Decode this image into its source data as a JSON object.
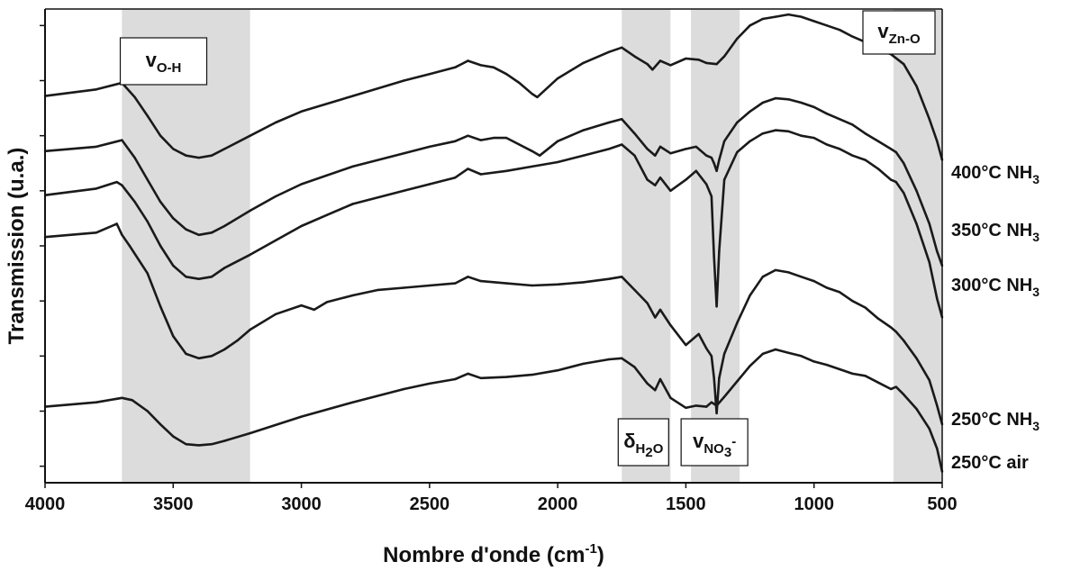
{
  "chart_data": {
    "type": "line",
    "xlabel": "Nombre d'onde (cm",
    "xlabel_sup": "-1",
    "xlabel_end": ")",
    "ylabel": "Transmission (u.a.)",
    "xlim": [
      4000,
      500
    ],
    "x_reversed": true,
    "x_ticks": [
      4000,
      3500,
      3000,
      2500,
      2000,
      1500,
      1000,
      500
    ],
    "y_ticks_labeled": false,
    "grid": false,
    "shaded_regions": [
      {
        "x": [
          3700,
          3200
        ],
        "label": "v",
        "sub": "O-H"
      },
      {
        "x": [
          1750,
          1560
        ],
        "label": "δ",
        "sub": "H",
        "sub2": "2",
        "sub3": "O"
      },
      {
        "x": [
          1480,
          1290
        ],
        "label": "v",
        "sub": "NO",
        "sub2": "3",
        "sup": "-"
      },
      {
        "x": [
          690,
          500
        ],
        "label": "v",
        "sub": "Zn-O"
      }
    ],
    "series": [
      {
        "name": "250°C air",
        "label_main": "250°C air",
        "label_sub": "",
        "x": [
          4000,
          3800,
          3700,
          3660,
          3600,
          3550,
          3500,
          3450,
          3400,
          3350,
          3300,
          3200,
          3000,
          2800,
          2600,
          2500,
          2400,
          2350,
          2300,
          2200,
          2100,
          2000,
          1900,
          1800,
          1750,
          1700,
          1650,
          1620,
          1600,
          1560,
          1500,
          1460,
          1420,
          1400,
          1380,
          1350,
          1300,
          1250,
          1200,
          1150,
          1100,
          1050,
          1000,
          950,
          900,
          850,
          800,
          750,
          700,
          680,
          650,
          600,
          550,
          520,
          500
        ],
        "y": [
          0.54,
          0.58,
          0.62,
          0.6,
          0.5,
          0.38,
          0.27,
          0.2,
          0.19,
          0.2,
          0.23,
          0.3,
          0.45,
          0.58,
          0.7,
          0.75,
          0.79,
          0.84,
          0.8,
          0.81,
          0.83,
          0.87,
          0.93,
          0.97,
          0.98,
          0.9,
          0.75,
          0.69,
          0.79,
          0.62,
          0.53,
          0.55,
          0.54,
          0.58,
          0.55,
          0.63,
          0.77,
          0.91,
          1.02,
          1.06,
          1.03,
          1.0,
          0.95,
          0.92,
          0.88,
          0.84,
          0.82,
          0.76,
          0.7,
          0.72,
          0.65,
          0.52,
          0.34,
          0.16,
          -0.05
        ]
      },
      {
        "name": "250°C NH3",
        "label_main": "250°C NH",
        "label_sub": "3",
        "x": [
          4000,
          3800,
          3720,
          3700,
          3670,
          3600,
          3550,
          3500,
          3450,
          3400,
          3350,
          3300,
          3250,
          3200,
          3100,
          3000,
          2950,
          2900,
          2800,
          2700,
          2600,
          2500,
          2400,
          2350,
          2300,
          2200,
          2100,
          2000,
          1900,
          1800,
          1750,
          1700,
          1650,
          1620,
          1600,
          1560,
          1500,
          1450,
          1420,
          1400,
          1390,
          1380,
          1370,
          1350,
          1300,
          1250,
          1200,
          1150,
          1100,
          1050,
          1000,
          950,
          900,
          850,
          800,
          750,
          700,
          680,
          650,
          600,
          550,
          520,
          500
        ],
        "y": [
          2.08,
          2.12,
          2.2,
          2.1,
          2.0,
          1.75,
          1.45,
          1.18,
          1.02,
          0.98,
          1.0,
          1.06,
          1.14,
          1.24,
          1.38,
          1.46,
          1.42,
          1.49,
          1.55,
          1.6,
          1.62,
          1.64,
          1.66,
          1.72,
          1.68,
          1.66,
          1.64,
          1.65,
          1.67,
          1.7,
          1.72,
          1.6,
          1.48,
          1.35,
          1.42,
          1.28,
          1.1,
          1.2,
          1.07,
          1.0,
          0.8,
          0.48,
          0.8,
          1.02,
          1.3,
          1.55,
          1.72,
          1.78,
          1.76,
          1.72,
          1.68,
          1.62,
          1.58,
          1.5,
          1.44,
          1.34,
          1.26,
          1.22,
          1.14,
          0.98,
          0.78,
          0.55,
          0.38
        ]
      },
      {
        "name": "300°C NH3",
        "label_main": "300°C NH",
        "label_sub": "3",
        "x": [
          4000,
          3800,
          3720,
          3700,
          3650,
          3600,
          3550,
          3500,
          3450,
          3400,
          3350,
          3300,
          3200,
          3100,
          3000,
          2900,
          2800,
          2600,
          2500,
          2400,
          2350,
          2300,
          2200,
          2100,
          2000,
          1900,
          1800,
          1750,
          1700,
          1650,
          1620,
          1600,
          1560,
          1500,
          1460,
          1420,
          1400,
          1390,
          1380,
          1370,
          1350,
          1300,
          1250,
          1200,
          1150,
          1100,
          1050,
          1000,
          950,
          900,
          850,
          800,
          750,
          700,
          680,
          650,
          600,
          550,
          520,
          500
        ],
        "y": [
          2.46,
          2.52,
          2.58,
          2.55,
          2.4,
          2.22,
          2.0,
          1.82,
          1.72,
          1.7,
          1.72,
          1.8,
          1.92,
          2.05,
          2.18,
          2.28,
          2.38,
          2.5,
          2.56,
          2.62,
          2.7,
          2.65,
          2.68,
          2.72,
          2.76,
          2.82,
          2.88,
          2.92,
          2.82,
          2.6,
          2.55,
          2.62,
          2.5,
          2.6,
          2.68,
          2.56,
          2.45,
          1.9,
          1.45,
          1.95,
          2.6,
          2.85,
          2.95,
          3.02,
          3.05,
          3.04,
          3.0,
          2.98,
          2.92,
          2.88,
          2.82,
          2.78,
          2.7,
          2.6,
          2.58,
          2.48,
          2.2,
          1.85,
          1.52,
          1.35
        ]
      },
      {
        "name": "350°C NH3",
        "label_main": "350°C NH",
        "label_sub": "3",
        "x": [
          4000,
          3800,
          3700,
          3650,
          3600,
          3550,
          3500,
          3450,
          3400,
          3350,
          3300,
          3200,
          3100,
          3000,
          2800,
          2600,
          2500,
          2400,
          2350,
          2300,
          2250,
          2200,
          2150,
          2100,
          2070,
          2000,
          1900,
          1800,
          1750,
          1700,
          1650,
          1620,
          1600,
          1560,
          1500,
          1460,
          1420,
          1400,
          1390,
          1380,
          1370,
          1350,
          1300,
          1250,
          1200,
          1150,
          1100,
          1050,
          1000,
          950,
          900,
          850,
          800,
          750,
          700,
          680,
          650,
          600,
          550,
          520,
          500
        ],
        "y": [
          2.86,
          2.9,
          2.96,
          2.8,
          2.6,
          2.4,
          2.25,
          2.15,
          2.1,
          2.12,
          2.18,
          2.32,
          2.45,
          2.56,
          2.72,
          2.84,
          2.9,
          2.95,
          3.0,
          2.96,
          2.98,
          2.98,
          2.92,
          2.86,
          2.82,
          2.95,
          3.05,
          3.12,
          3.15,
          3.02,
          2.88,
          2.82,
          2.9,
          2.84,
          2.88,
          2.9,
          2.82,
          2.8,
          2.75,
          2.68,
          2.78,
          2.95,
          3.12,
          3.22,
          3.3,
          3.34,
          3.33,
          3.3,
          3.26,
          3.2,
          3.15,
          3.1,
          3.02,
          2.95,
          2.88,
          2.85,
          2.75,
          2.5,
          2.2,
          1.95,
          1.82
        ]
      },
      {
        "name": "400°C NH3",
        "label_main": "400°C NH",
        "label_sub": "3",
        "x": [
          4000,
          3800,
          3700,
          3650,
          3600,
          3550,
          3500,
          3450,
          3400,
          3350,
          3300,
          3200,
          3100,
          3000,
          2800,
          2600,
          2500,
          2400,
          2350,
          2300,
          2250,
          2200,
          2150,
          2100,
          2080,
          2000,
          1900,
          1800,
          1750,
          1700,
          1650,
          1630,
          1600,
          1560,
          1500,
          1450,
          1420,
          1380,
          1350,
          1300,
          1250,
          1200,
          1150,
          1100,
          1050,
          1000,
          950,
          900,
          850,
          800,
          750,
          700,
          650,
          600,
          550,
          520,
          500
        ],
        "y": [
          3.36,
          3.42,
          3.48,
          3.35,
          3.18,
          3.0,
          2.88,
          2.82,
          2.8,
          2.82,
          2.88,
          3.0,
          3.12,
          3.22,
          3.36,
          3.5,
          3.56,
          3.62,
          3.68,
          3.64,
          3.62,
          3.56,
          3.48,
          3.38,
          3.35,
          3.52,
          3.66,
          3.76,
          3.8,
          3.72,
          3.65,
          3.6,
          3.68,
          3.64,
          3.7,
          3.69,
          3.66,
          3.65,
          3.72,
          3.88,
          4.0,
          4.06,
          4.08,
          4.1,
          4.08,
          4.04,
          4.0,
          3.96,
          3.9,
          3.85,
          3.78,
          3.74,
          3.65,
          3.45,
          3.15,
          2.95,
          2.78
        ]
      }
    ]
  }
}
